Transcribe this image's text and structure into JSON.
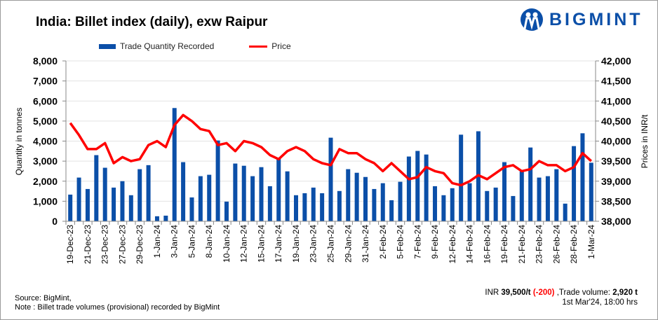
{
  "title": "India: Billet index (daily), exw Raipur",
  "logo": "BIGMINT",
  "footer": {
    "source": "Source: BigMint,",
    "note": "Note : Billet trade volumes (provisional) recorded by BigMint",
    "inr_prefix": "INR",
    "price": "39,500/t",
    "change": "(-200)",
    "volume_prefix": ",Trade volume:",
    "volume": "2,920 t",
    "timestamp": "1st Mar'24, 18:00 hrs"
  },
  "colors": {
    "bar": "#0b4fa8",
    "line": "#ff0000"
  },
  "chart_data": {
    "type": "bar+line",
    "title": "India: Billet index (daily), exw Raipur",
    "legend": [
      "Trade Quantity Recorded",
      "Price"
    ],
    "legend_position": "top",
    "ylabel": "Quantity in tonnes",
    "y2label": "Prices in INR/t",
    "ylim": [
      0,
      8000
    ],
    "y2lim": [
      38000,
      42000
    ],
    "yticks": [
      "0",
      "1,000",
      "2,000",
      "3,000",
      "4,000",
      "5,000",
      "6,000",
      "7,000",
      "8,000"
    ],
    "y2ticks": [
      "38,000",
      "38,500",
      "39,000",
      "39,500",
      "40,000",
      "40,500",
      "41,000",
      "41,500",
      "42,000"
    ],
    "tick_labels": [
      "19-Dec-23",
      "21-Dec-23",
      "23-Dec-23",
      "27-Dec-23",
      "29-Dec-23",
      "1-Jan-24",
      "3-Jan-24",
      "5-Jan-24",
      "8-Jan-24",
      "10-Jan-24",
      "12-Jan-24",
      "15-Jan-24",
      "17-Jan-24",
      "19-Jan-24",
      "23-Jan-24",
      "25-Jan-24",
      "29-Jan-24",
      "31-Jan-24",
      "2-Feb-24",
      "5-Feb-24",
      "7-Feb-24",
      "9-Feb-24",
      "12-Feb-24",
      "14-Feb-24",
      "16-Feb-24",
      "19-Feb-24",
      "21-Feb-24",
      "23-Feb-24",
      "26-Feb-24",
      "28-Feb-24",
      "1-Mar-24"
    ],
    "series": [
      {
        "name": "Trade Quantity Recorded",
        "axis": "left",
        "type": "bar",
        "values": [
          1330,
          2180,
          1610,
          3300,
          2670,
          1680,
          2000,
          1300,
          2600,
          2800,
          250,
          280,
          5650,
          2950,
          1190,
          2250,
          2320,
          4030,
          980,
          2880,
          2770,
          2250,
          2700,
          1750,
          3120,
          2490,
          1300,
          1400,
          1680,
          1400,
          4170,
          1510,
          2600,
          2420,
          2210,
          1610,
          1900,
          1050,
          1970,
          3230,
          3510,
          3330,
          1750,
          1300,
          1650,
          4320,
          1900,
          4490,
          1510,
          1680,
          2950,
          1260,
          2490,
          3680,
          2180,
          2250,
          2600,
          880,
          3750,
          4390,
          2920
        ]
      },
      {
        "name": "Price",
        "axis": "right",
        "type": "line",
        "values": [
          40450,
          40150,
          39800,
          39800,
          39950,
          39450,
          39600,
          39500,
          39550,
          39900,
          40000,
          39850,
          40400,
          40650,
          40500,
          40300,
          40250,
          39900,
          39950,
          39750,
          40000,
          39950,
          39850,
          39650,
          39550,
          39750,
          39850,
          39750,
          39550,
          39450,
          39400,
          39800,
          39700,
          39700,
          39550,
          39450,
          39250,
          39450,
          39250,
          39050,
          39100,
          39350,
          39250,
          39200,
          38950,
          38900,
          39000,
          39150,
          39050,
          39200,
          39350,
          39400,
          39250,
          39300,
          39500,
          39400,
          39400,
          39250,
          39350,
          39700,
          39500
        ]
      }
    ]
  }
}
